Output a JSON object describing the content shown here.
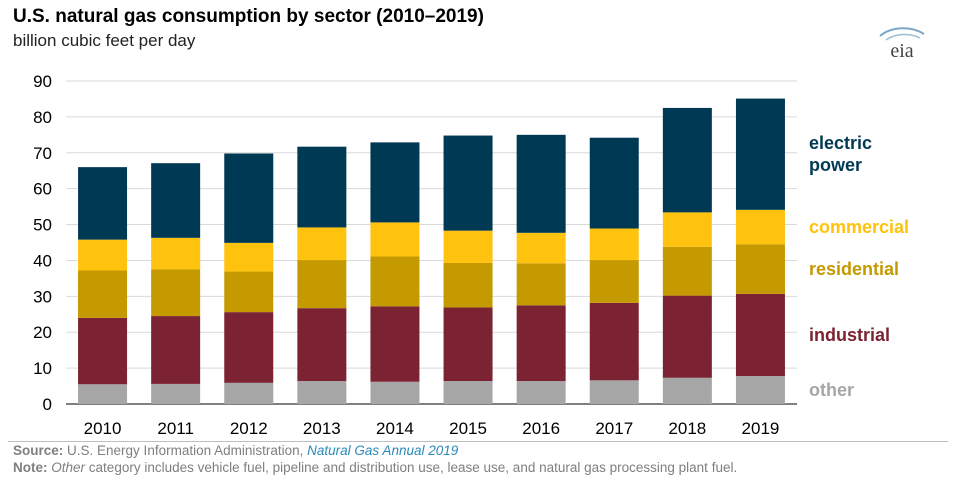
{
  "title": "U.S. natural gas consumption by sector (2010–2019)",
  "subtitle": "billion cubic feet per day",
  "logo_text": "eia",
  "source": {
    "label": "Source:",
    "text": "U.S. Energy Information Administration,",
    "link": "Natural Gas Annual 2019"
  },
  "note": {
    "label": "Note:",
    "italic": "Other",
    "text": "category includes vehicle fuel, pipeline and distribution use, lease use, and natural gas processing plant fuel."
  },
  "chart_data": {
    "type": "bar",
    "stacked": true,
    "categories": [
      "2010",
      "2011",
      "2012",
      "2013",
      "2014",
      "2015",
      "2016",
      "2017",
      "2018",
      "2019"
    ],
    "ylim": [
      0,
      90
    ],
    "yticks": [
      0,
      10,
      20,
      30,
      40,
      50,
      60,
      70,
      80,
      90
    ],
    "grid": true,
    "legend_position": "right",
    "series": [
      {
        "name": "other",
        "label_lines": [
          "other"
        ],
        "color": "#a6a6a6",
        "values": [
          5.5,
          5.6,
          5.9,
          6.4,
          6.2,
          6.4,
          6.4,
          6.6,
          7.3,
          7.8
        ]
      },
      {
        "name": "industrial",
        "label_lines": [
          "industrial"
        ],
        "color": "#7b2332",
        "values": [
          18.5,
          18.9,
          19.7,
          20.3,
          21.0,
          20.5,
          21.1,
          21.6,
          22.9,
          22.9
        ]
      },
      {
        "name": "residential",
        "label_lines": [
          "residential"
        ],
        "color": "#c49a00",
        "values": [
          13.2,
          13.0,
          11.3,
          13.4,
          13.9,
          12.4,
          11.7,
          11.9,
          13.6,
          13.8
        ]
      },
      {
        "name": "commercial",
        "label_lines": [
          "commercial"
        ],
        "color": "#ffc20e",
        "values": [
          8.6,
          8.8,
          8.0,
          9.1,
          9.5,
          9.0,
          8.5,
          8.8,
          9.6,
          9.6
        ]
      },
      {
        "name": "electric power",
        "label_lines": [
          "electric",
          "power"
        ],
        "color": "#003953",
        "values": [
          20.2,
          20.8,
          24.9,
          22.5,
          22.3,
          26.5,
          27.3,
          25.3,
          29.1,
          31.0
        ]
      }
    ]
  }
}
